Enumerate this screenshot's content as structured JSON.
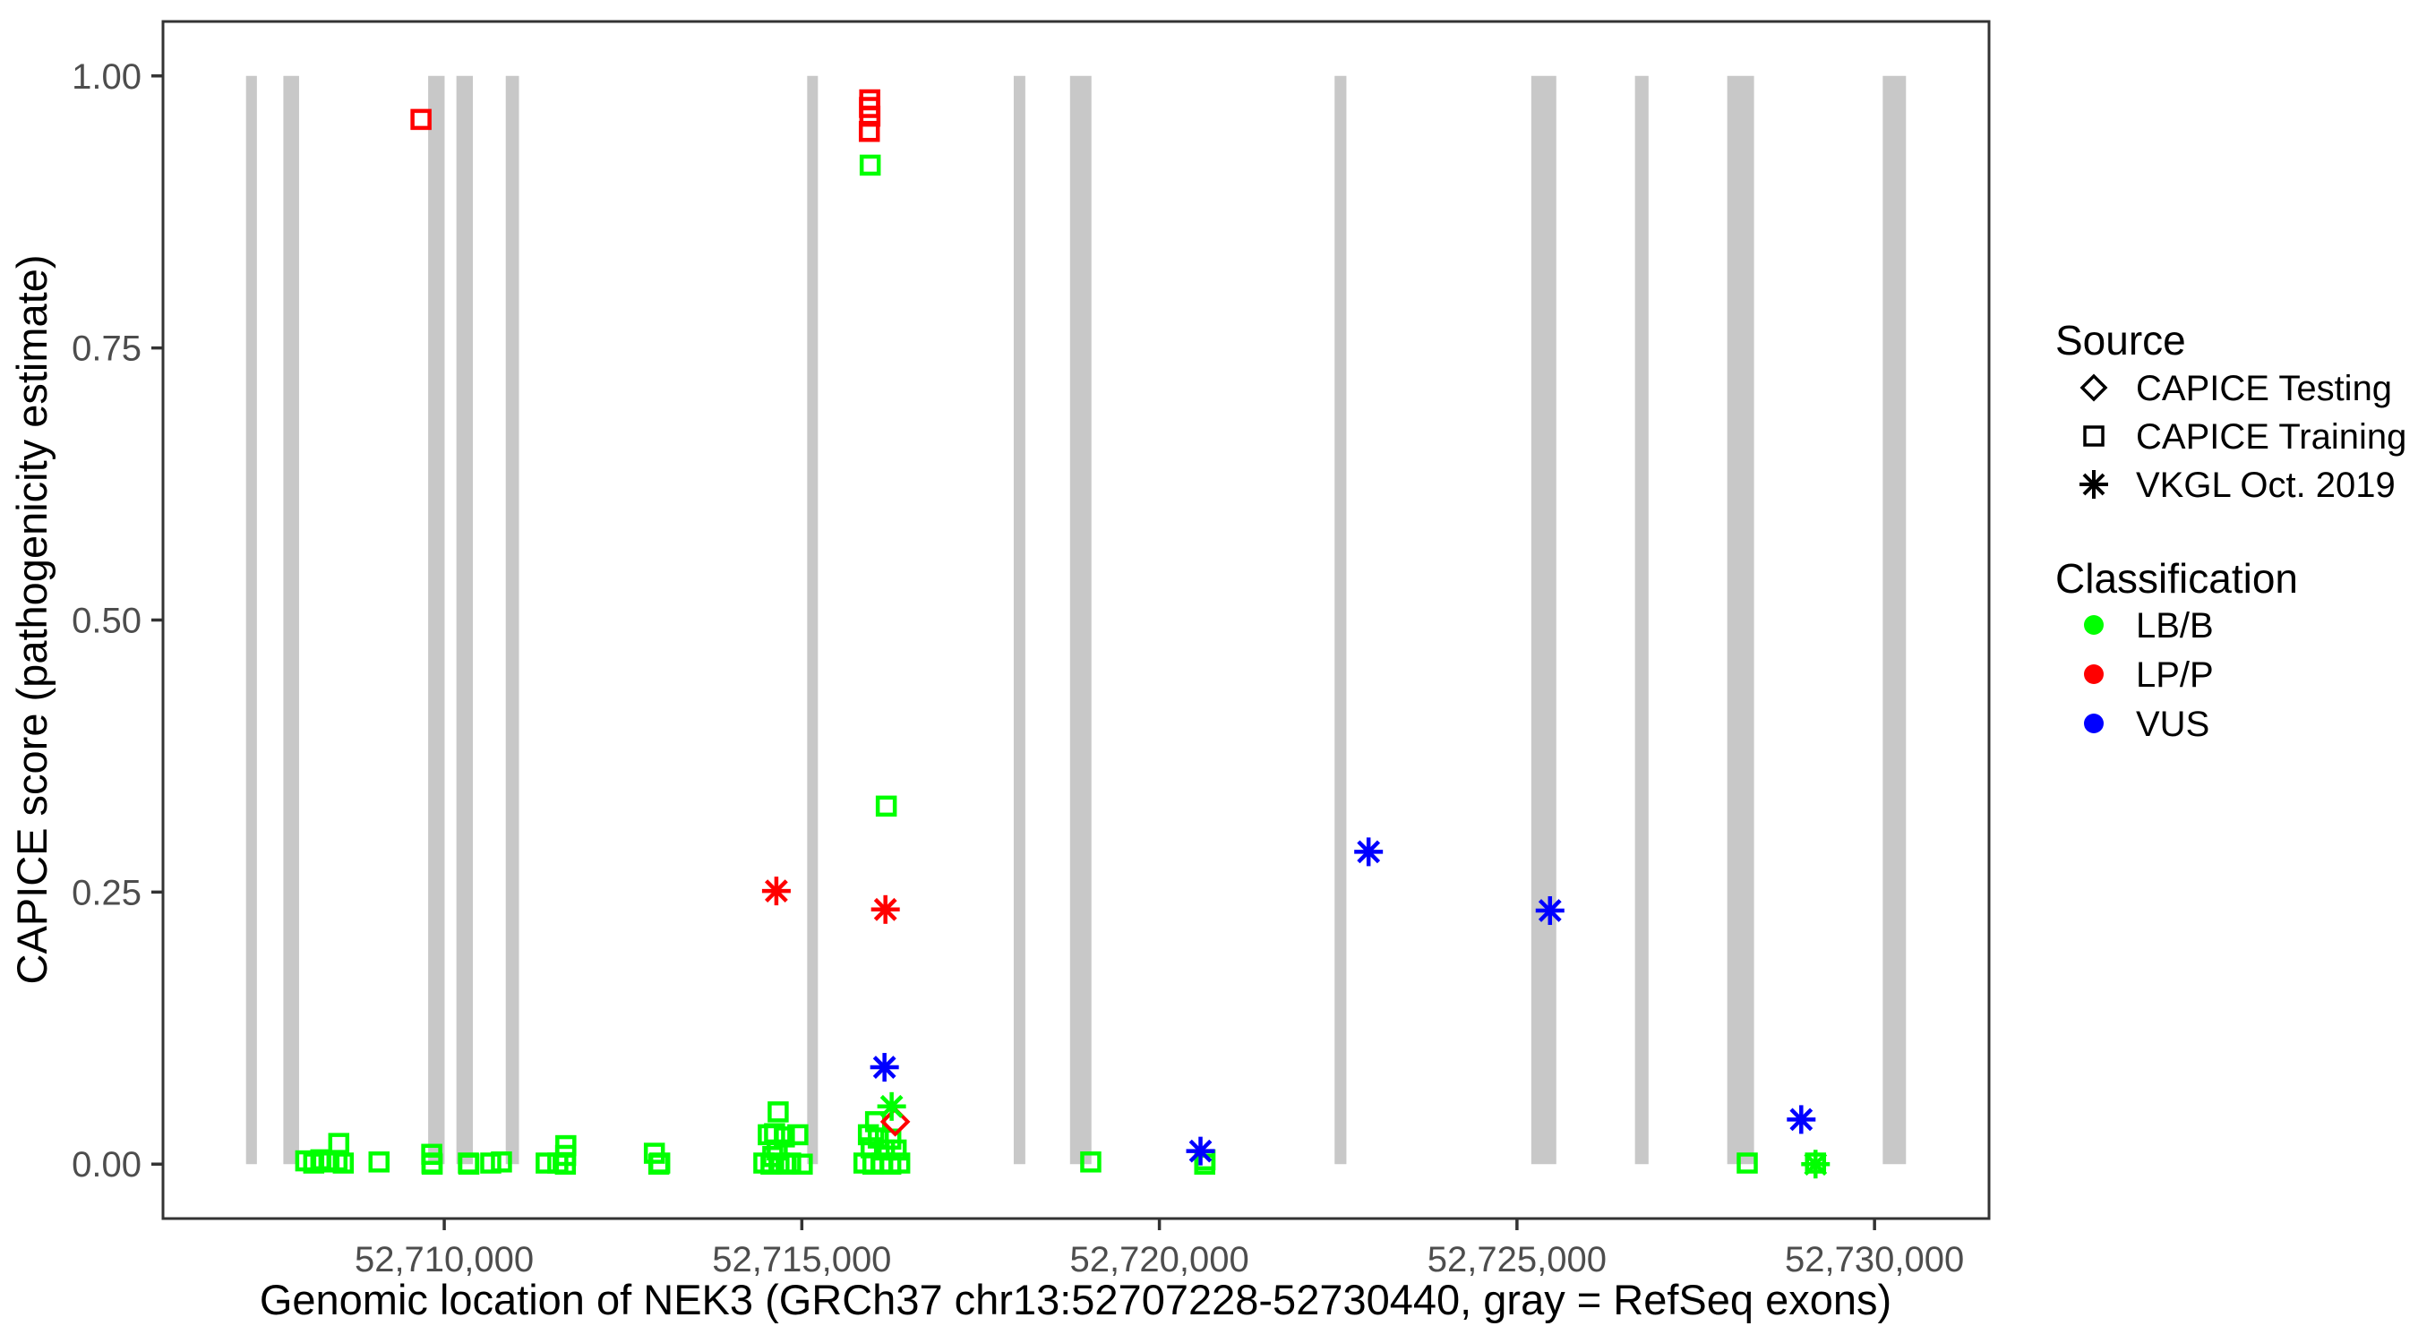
{
  "legend": {
    "source": {
      "title": "Source",
      "items": [
        {
          "label": "CAPICE Testing",
          "marker": "diamond"
        },
        {
          "label": "CAPICE Training",
          "marker": "square"
        },
        {
          "label": "VKGL Oct. 2019",
          "marker": "asterisk"
        }
      ]
    },
    "classification": {
      "title": "Classification",
      "items": [
        {
          "label": "LB/B",
          "color": "#00FF00"
        },
        {
          "label": "LP/P",
          "color": "#FF0000"
        },
        {
          "label": "VUS",
          "color": "#0000FF"
        }
      ]
    }
  },
  "chart_data": {
    "type": "scatter",
    "title": "",
    "xlabel": "Genomic location of NEK3 (GRCh37 chr13:52707228-52730440, gray = RefSeq exons)",
    "ylabel": "CAPICE score (pathogenicity estimate)",
    "xlim": [
      52706067,
      52731601
    ],
    "ylim": [
      -0.05,
      1.05
    ],
    "x_ticks": [
      {
        "value": 52710000,
        "label": "52,710,000"
      },
      {
        "value": 52715000,
        "label": "52,715,000"
      },
      {
        "value": 52720000,
        "label": "52,720,000"
      },
      {
        "value": 52725000,
        "label": "52,725,000"
      },
      {
        "value": 52730000,
        "label": "52,730,000"
      }
    ],
    "y_ticks": [
      {
        "value": 0.0,
        "label": "0.00"
      },
      {
        "value": 0.25,
        "label": "0.25"
      },
      {
        "value": 0.5,
        "label": "0.50"
      },
      {
        "value": 0.75,
        "label": "0.75"
      },
      {
        "value": 1.0,
        "label": "1.00"
      }
    ],
    "grid": false,
    "legend_position": "right",
    "exon_color": "#C8C8C8",
    "exons": [
      [
        52707228,
        52707380
      ],
      [
        52707750,
        52707970
      ],
      [
        52709775,
        52710005
      ],
      [
        52710170,
        52710400
      ],
      [
        52710860,
        52711045
      ],
      [
        52715075,
        52715225
      ],
      [
        52717963,
        52718125
      ],
      [
        52718750,
        52719050
      ],
      [
        52722450,
        52722615
      ],
      [
        52725200,
        52725550
      ],
      [
        52726650,
        52726840
      ],
      [
        52727940,
        52728315
      ],
      [
        52730115,
        52730440
      ]
    ],
    "series": [
      {
        "name": "CAPICE Training / LB/B",
        "source": "CAPICE Training",
        "classification": "LB/B",
        "marker": "square",
        "color": "#00FF00",
        "points": [
          [
            52708063,
            0.003
          ],
          [
            52708175,
            0.001
          ],
          [
            52708275,
            0.004
          ],
          [
            52708388,
            0.002
          ],
          [
            52708500,
            0.003
          ],
          [
            52708588,
            0.001
          ],
          [
            52708525,
            0.019
          ],
          [
            52709088,
            0.002
          ],
          [
            52709825,
            0.009
          ],
          [
            52709828,
            0.001
          ],
          [
            52709831,
            0.0
          ],
          [
            52710338,
            0.001
          ],
          [
            52710344,
            0.0
          ],
          [
            52710650,
            0.001
          ],
          [
            52710800,
            0.002
          ],
          [
            52711425,
            0.001
          ],
          [
            52711588,
            0.001
          ],
          [
            52711700,
            0.017
          ],
          [
            52711697,
            0.008
          ],
          [
            52711694,
            0.0
          ],
          [
            52712938,
            0.01
          ],
          [
            52713000,
            0.0
          ],
          [
            52713013,
            0.001
          ],
          [
            52714669,
            0.048
          ],
          [
            52714531,
            0.027
          ],
          [
            52714619,
            0.028
          ],
          [
            52714756,
            0.025
          ],
          [
            52714944,
            0.027
          ],
          [
            52714656,
            0.013
          ],
          [
            52714594,
            0.007
          ],
          [
            52714469,
            0.001
          ],
          [
            52714569,
            0.0
          ],
          [
            52714681,
            0.001
          ],
          [
            52714781,
            0.0
          ],
          [
            52714844,
            0.001
          ],
          [
            52715006,
            0.0
          ],
          [
            52716031,
            0.039
          ],
          [
            52715931,
            0.027
          ],
          [
            52716069,
            0.024
          ],
          [
            52716244,
            0.023
          ],
          [
            52715969,
            0.015
          ],
          [
            52716156,
            0.013
          ],
          [
            52716319,
            0.013
          ],
          [
            52715869,
            0.001
          ],
          [
            52715994,
            0.0
          ],
          [
            52716119,
            0.001
          ],
          [
            52716244,
            0.0
          ],
          [
            52716369,
            0.001
          ],
          [
            52716181,
            0.329
          ],
          [
            52715956,
            0.918
          ],
          [
            52719040,
            0.002
          ],
          [
            52720638,
            0.004
          ],
          [
            52720634,
            0.0
          ],
          [
            52728220,
            0.001
          ],
          [
            52729175,
            0.001
          ]
        ]
      },
      {
        "name": "CAPICE Training / LP/P",
        "source": "CAPICE Training",
        "classification": "LP/P",
        "marker": "square",
        "color": "#FF0000",
        "points": [
          [
            52709675,
            0.96
          ],
          [
            52715950,
            0.978
          ],
          [
            52715946,
            0.971
          ],
          [
            52715952,
            0.963
          ],
          [
            52715944,
            0.949
          ]
        ]
      },
      {
        "name": "CAPICE Testing / LP/P",
        "source": "CAPICE Testing",
        "classification": "LP/P",
        "marker": "diamond",
        "color": "#FF0000",
        "points": [
          [
            52716306,
            0.039
          ]
        ]
      },
      {
        "name": "VKGL Oct. 2019 / LB/B",
        "source": "VKGL Oct. 2019",
        "classification": "LB/B",
        "marker": "asterisk",
        "color": "#00FF00",
        "points": [
          [
            52716256,
            0.053
          ],
          [
            52729175,
            0.0
          ]
        ]
      },
      {
        "name": "VKGL Oct. 2019 / LP/P",
        "source": "VKGL Oct. 2019",
        "classification": "LP/P",
        "marker": "asterisk",
        "color": "#FF0000",
        "points": [
          [
            52714644,
            0.251
          ],
          [
            52716169,
            0.234
          ]
        ]
      },
      {
        "name": "VKGL Oct. 2019 / VUS",
        "source": "VKGL Oct. 2019",
        "classification": "VUS",
        "marker": "asterisk",
        "color": "#0000FF",
        "points": [
          [
            52716156,
            0.089
          ],
          [
            52720575,
            0.012
          ],
          [
            52722925,
            0.287
          ],
          [
            52725462,
            0.233
          ],
          [
            52728975,
            0.041
          ]
        ]
      }
    ]
  }
}
